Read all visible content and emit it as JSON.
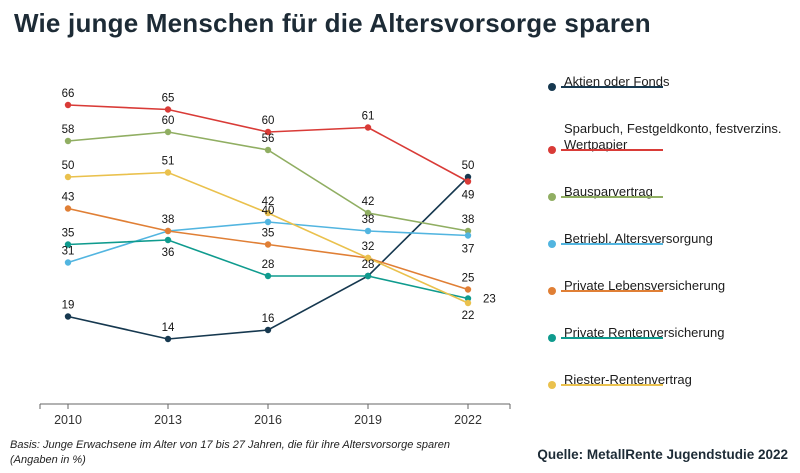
{
  "title": "Wie junge Menschen für die Altersvorsorge sparen",
  "chart_data": {
    "type": "line",
    "x": [
      "2010",
      "2013",
      "2016",
      "2019",
      "2022"
    ],
    "unit": "%",
    "ylim": [
      0,
      70
    ],
    "grid": false,
    "legend_position": "right",
    "series": [
      {
        "name": "Aktien oder Fonds",
        "color": "#16384f",
        "values": [
          19,
          14,
          16,
          28,
          50
        ]
      },
      {
        "name": "Sparbuch, Festgeldkonto, festverzins. Wertpapier",
        "color": "#d93b37",
        "values": [
          66,
          65,
          60,
          61,
          49
        ]
      },
      {
        "name": "Bausparvertrag",
        "color": "#90ae62",
        "values": [
          58,
          60,
          56,
          42,
          38
        ]
      },
      {
        "name": "Betriebl. Altersversorgung",
        "color": "#52b5e0",
        "values": [
          31,
          38,
          40,
          38,
          37
        ]
      },
      {
        "name": "Private Lebensversicherung",
        "color": "#e07f35",
        "values": [
          43,
          38,
          35,
          32,
          25
        ]
      },
      {
        "name": "Private Rentenversicherung",
        "color": "#0f9b8e",
        "values": [
          35,
          36,
          28,
          28,
          23
        ]
      },
      {
        "name": "Riester-Rentenvertrag",
        "color": "#eac14d",
        "values": [
          50,
          51,
          42,
          32,
          22
        ]
      }
    ],
    "label_offsets": [
      [
        [
          0,
          -8
        ],
        [
          0,
          -8
        ],
        [
          0,
          -8
        ],
        [
          0,
          -8
        ],
        [
          0,
          -8
        ]
      ],
      [
        [
          0,
          -8
        ],
        [
          0,
          -8
        ],
        [
          0,
          -8
        ],
        [
          0,
          -8
        ],
        [
          0,
          17
        ]
      ],
      [
        [
          0,
          -8
        ],
        [
          0,
          -8
        ],
        [
          0,
          -8
        ],
        [
          0,
          -8
        ],
        [
          0,
          -8
        ]
      ],
      [
        [
          0,
          -8
        ],
        [
          0,
          -8
        ],
        [
          0,
          -8
        ],
        [
          0,
          -8
        ],
        [
          0,
          17
        ]
      ],
      [
        [
          0,
          -8
        ],
        null,
        [
          0,
          -8
        ],
        [
          0,
          -8
        ],
        [
          0,
          -8
        ]
      ],
      [
        [
          0,
          -8
        ],
        [
          0,
          16
        ],
        [
          0,
          -8
        ],
        null,
        [
          15,
          4
        ]
      ],
      [
        [
          0,
          -8
        ],
        [
          0,
          -8
        ],
        [
          0,
          -8
        ],
        null,
        [
          0,
          16
        ]
      ]
    ]
  },
  "footer": {
    "basis_line1": "Basis: Junge Erwachsene im Alter von 17 bis 27 Jahren, die für ihre Altersvorsorge sparen",
    "basis_line2": "(Angaben in %)",
    "source": "Quelle: MetallRente Jugendstudie 2022"
  }
}
